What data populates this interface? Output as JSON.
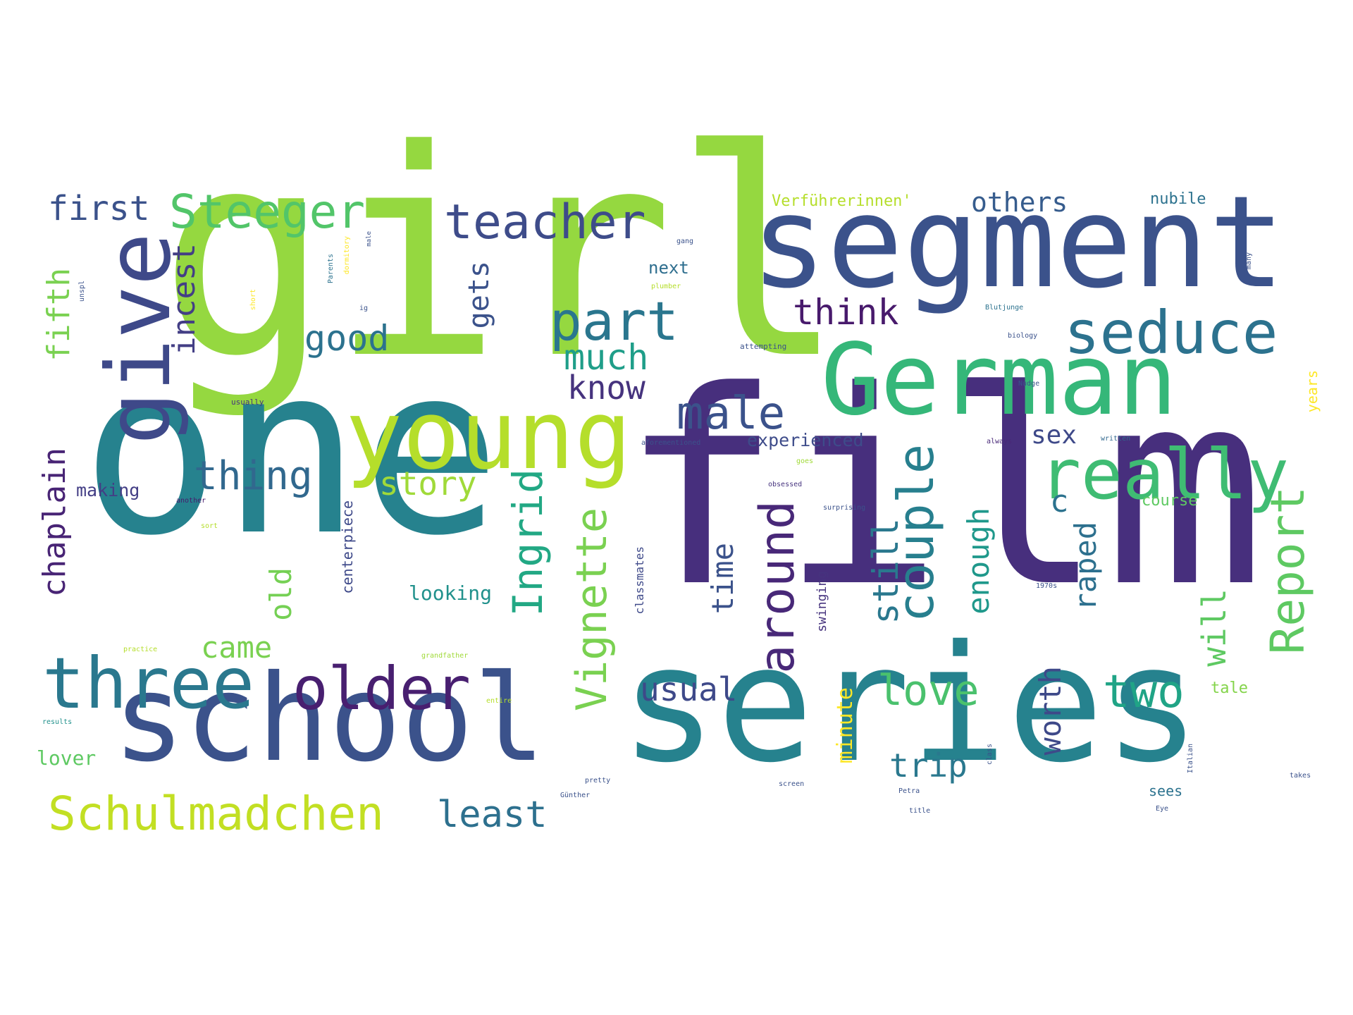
{
  "cloud": {
    "words": [
      {
        "text": "film",
        "color": "#472f7d"
      },
      {
        "text": "girl",
        "color": "#95d840"
      },
      {
        "text": "one",
        "color": "#26828e"
      },
      {
        "text": "series",
        "color": "#26828e"
      },
      {
        "text": "segment",
        "color": "#3b528b"
      },
      {
        "text": "school",
        "color": "#3b528b"
      },
      {
        "text": "German",
        "color": "#35b779"
      },
      {
        "text": "young",
        "color": "#b5de2b"
      },
      {
        "text": "give",
        "color": "#3e4989"
      },
      {
        "text": "three",
        "color": "#2a788e"
      },
      {
        "text": "older",
        "color": "#481f70"
      },
      {
        "text": "seduce",
        "color": "#2c728e"
      },
      {
        "text": "really",
        "color": "#3fbc73"
      },
      {
        "text": "Schulmadchen",
        "color": "#c2df23"
      },
      {
        "text": "Steeger",
        "color": "#52c569"
      },
      {
        "text": "teacher",
        "color": "#3e4c8a"
      },
      {
        "text": "part",
        "color": "#2a768e"
      },
      {
        "text": "male",
        "color": "#3b528b"
      },
      {
        "text": "Report",
        "color": "#5ec962"
      },
      {
        "text": "couple",
        "color": "#277f8e"
      },
      {
        "text": "around",
        "color": "#482878"
      },
      {
        "text": "Ingrid",
        "color": "#22a884"
      },
      {
        "text": "Vignette",
        "color": "#7ad151"
      },
      {
        "text": "two",
        "color": "#20a486"
      },
      {
        "text": "love",
        "color": "#4ac16d"
      },
      {
        "text": "thing",
        "color": "#31688e"
      },
      {
        "text": "least",
        "color": "#2d708e"
      },
      {
        "text": "first",
        "color": "#3b528b"
      },
      {
        "text": "good",
        "color": "#2c728e"
      },
      {
        "text": "think",
        "color": "#481a6c"
      },
      {
        "text": "much",
        "color": "#1f9e89"
      },
      {
        "text": "know",
        "color": "#46337e"
      },
      {
        "text": "story",
        "color": "#a0da39"
      },
      {
        "text": "came",
        "color": "#7ad151"
      },
      {
        "text": "usual",
        "color": "#3e4989"
      },
      {
        "text": "trip",
        "color": "#2a788e"
      },
      {
        "text": "sex",
        "color": "#3e4989"
      },
      {
        "text": "others",
        "color": "#365c8d"
      },
      {
        "text": "incest",
        "color": "#433e85"
      },
      {
        "text": "fifth",
        "color": "#7ad151"
      },
      {
        "text": "chaplain",
        "color": "#482475"
      },
      {
        "text": "gets",
        "color": "#3b528b"
      },
      {
        "text": "old",
        "color": "#75d054"
      },
      {
        "text": "time",
        "color": "#3b528b"
      },
      {
        "text": "still",
        "color": "#2a788e"
      },
      {
        "text": "enough",
        "color": "#1f988b"
      },
      {
        "text": "raped",
        "color": "#2d708e"
      },
      {
        "text": "worth",
        "color": "#3e4989"
      },
      {
        "text": "will",
        "color": "#5ec962"
      },
      {
        "text": "minute",
        "color": "#fde725"
      },
      {
        "text": "experienced",
        "color": "#3e4c8a"
      },
      {
        "text": "making",
        "color": "#433e85"
      },
      {
        "text": "looking",
        "color": "#21918c"
      },
      {
        "text": "lover",
        "color": "#5ec962"
      },
      {
        "text": "Verführerinnen'",
        "color": "#b5de2b"
      },
      {
        "text": "nubile",
        "color": "#2c728e"
      },
      {
        "text": "next",
        "color": "#2e6e8e"
      },
      {
        "text": "course",
        "color": "#5ec962"
      },
      {
        "text": "sees",
        "color": "#2c728e"
      },
      {
        "text": "tale",
        "color": "#84d44b"
      },
      {
        "text": "years",
        "color": "#fde725"
      },
      {
        "text": "centerpiece",
        "color": "#3e4989"
      },
      {
        "text": "classmates",
        "color": "#3e4989"
      },
      {
        "text": "swinging",
        "color": "#46337e"
      },
      {
        "text": "c",
        "color": "#2c728e"
      },
      {
        "text": "usually",
        "color": "#46337e"
      },
      {
        "text": "attempting",
        "color": "#3b528b"
      },
      {
        "text": "aforementioned",
        "color": "#3b528b"
      },
      {
        "text": "always",
        "color": "#482878"
      },
      {
        "text": "written",
        "color": "#31688e"
      },
      {
        "text": "obsessed",
        "color": "#46337e"
      },
      {
        "text": "another",
        "color": "#481a6c"
      },
      {
        "text": "surprising",
        "color": "#3b528b"
      },
      {
        "text": "goes",
        "color": "#a0da39"
      },
      {
        "text": "gang",
        "color": "#3b528b"
      },
      {
        "text": "plumber",
        "color": "#b5de2b"
      },
      {
        "text": "Blutjunge",
        "color": "#2c728e"
      },
      {
        "text": "biology",
        "color": "#3b528b"
      },
      {
        "text": "Nudge",
        "color": "#3b528b"
      },
      {
        "text": "1970s",
        "color": "#3b528b"
      },
      {
        "text": "practice",
        "color": "#b5de2b"
      },
      {
        "text": "grandfather",
        "color": "#a0da39"
      },
      {
        "text": "entire",
        "color": "#b5de2b"
      },
      {
        "text": "results",
        "color": "#21918c"
      },
      {
        "text": "pretty",
        "color": "#3b528b"
      },
      {
        "text": "Günther",
        "color": "#3b528b"
      },
      {
        "text": "screen",
        "color": "#3b528b"
      },
      {
        "text": "Petra",
        "color": "#3b528b"
      },
      {
        "text": "title",
        "color": "#3b528b"
      },
      {
        "text": "Eye",
        "color": "#3b528b"
      },
      {
        "text": "Italian",
        "color": "#3b528b"
      },
      {
        "text": "class",
        "color": "#3b528b"
      },
      {
        "text": "takes",
        "color": "#3b528b"
      },
      {
        "text": "sort",
        "color": "#b5de2b"
      },
      {
        "text": "unspl",
        "color": "#3b528b"
      },
      {
        "text": "Parents",
        "color": "#2c728e"
      },
      {
        "text": "dormitory",
        "color": "#fde725"
      },
      {
        "text": "male",
        "color": "#3b528b"
      },
      {
        "text": "short",
        "color": "#fde725"
      },
      {
        "text": "ig",
        "color": "#3b528b"
      },
      {
        "text": "many",
        "color": "#3b528b"
      }
    ]
  }
}
